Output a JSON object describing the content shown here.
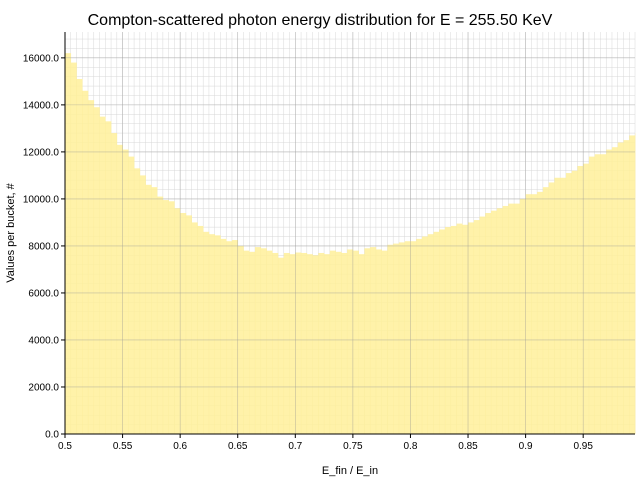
{
  "chart_data": {
    "type": "bar",
    "title": "Compton-scattered photon energy distribution for E = 255.50 KeV",
    "xlabel": "E_fin / E_in",
    "ylabel": "Values per bucket, #",
    "xlim": [
      0.5,
      0.995
    ],
    "ylim": [
      0,
      17100
    ],
    "x_ticks": [
      "0.5",
      "0.55",
      "0.6",
      "0.65",
      "0.7",
      "0.75",
      "0.8",
      "0.85",
      "0.9",
      "0.95"
    ],
    "y_ticks": [
      "0.0",
      "2000.0",
      "4000.0",
      "6000.0",
      "8000.0",
      "10000.0",
      "12000.0",
      "14000.0",
      "16000.0"
    ],
    "grid": true,
    "bar_color": "#fff09a",
    "bin_width": 0.005,
    "values": [
      16200,
      15800,
      15100,
      14600,
      14200,
      13900,
      13500,
      13300,
      12800,
      12300,
      12100,
      11800,
      11300,
      11000,
      10600,
      10500,
      10100,
      9950,
      9900,
      9600,
      9400,
      9300,
      9000,
      8850,
      8600,
      8500,
      8450,
      8300,
      8200,
      8250,
      8000,
      7800,
      7750,
      7950,
      7900,
      7800,
      7700,
      7500,
      7700,
      7650,
      7720,
      7700,
      7650,
      7600,
      7700,
      7650,
      7800,
      7750,
      7700,
      7850,
      7800,
      7650,
      7900,
      7950,
      7850,
      7800,
      8050,
      8100,
      8150,
      8200,
      8200,
      8300,
      8400,
      8500,
      8600,
      8700,
      8800,
      8850,
      8950,
      8900,
      9000,
      9100,
      9250,
      9400,
      9500,
      9600,
      9700,
      9800,
      9800,
      10000,
      10200,
      10200,
      10300,
      10500,
      10700,
      10900,
      10900,
      11100,
      11200,
      11400,
      11500,
      11800,
      11900,
      11900,
      12100,
      12200,
      12400,
      12500,
      12700,
      12800,
      12700,
      13100,
      13400
    ]
  }
}
